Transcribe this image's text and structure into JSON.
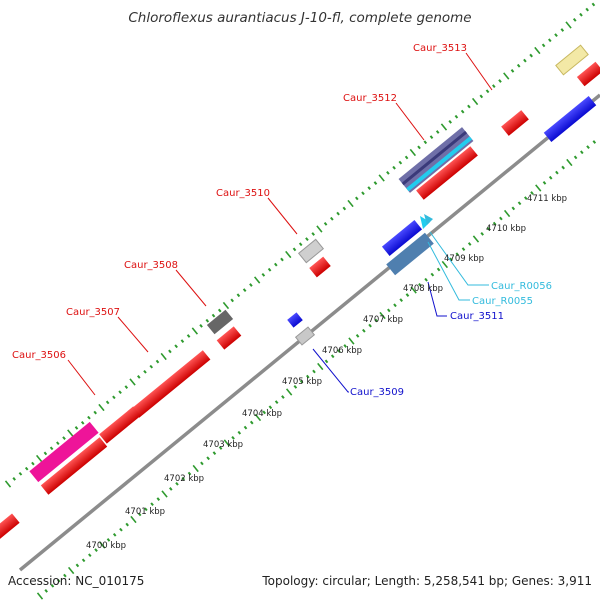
{
  "title": "Chloroflexus aurantiacus J-10-fl, complete genome",
  "footer": {
    "accession": "Accession: NC_010175",
    "stats": "Topology: circular; Length: 5,258,541 bp; Genes: 3,911"
  },
  "colors": {
    "backbone": "#8c8c8c",
    "tick": "#2e9a2e",
    "gene": "#ee1111",
    "rna": "#22ccee",
    "blue": "#1a1aee",
    "label_red": "#dd1111",
    "label_blue": "#1111cc",
    "label_cyan": "#33bbdd"
  },
  "scale_labels": [
    "4700 kbp",
    "4701 kbp",
    "4702 kbp",
    "4703 kbp",
    "4704 kbp",
    "4705 kbp",
    "4706 kbp",
    "4707 kbp",
    "4708 kbp",
    "4709 kbp",
    "4710 kbp",
    "4711 kbp"
  ],
  "features": [
    {
      "name": "Caur_3506",
      "color": "label_red"
    },
    {
      "name": "Caur_3507",
      "color": "label_red"
    },
    {
      "name": "Caur_3508",
      "color": "label_red"
    },
    {
      "name": "Caur_3510",
      "color": "label_red"
    },
    {
      "name": "Caur_3512",
      "color": "label_red"
    },
    {
      "name": "Caur_3513",
      "color": "label_red"
    },
    {
      "name": "Caur_R0056",
      "color": "label_cyan"
    },
    {
      "name": "Caur_R0055",
      "color": "label_cyan"
    },
    {
      "name": "Caur_3511",
      "color": "label_blue"
    },
    {
      "name": "Caur_3509",
      "color": "label_blue"
    }
  ]
}
